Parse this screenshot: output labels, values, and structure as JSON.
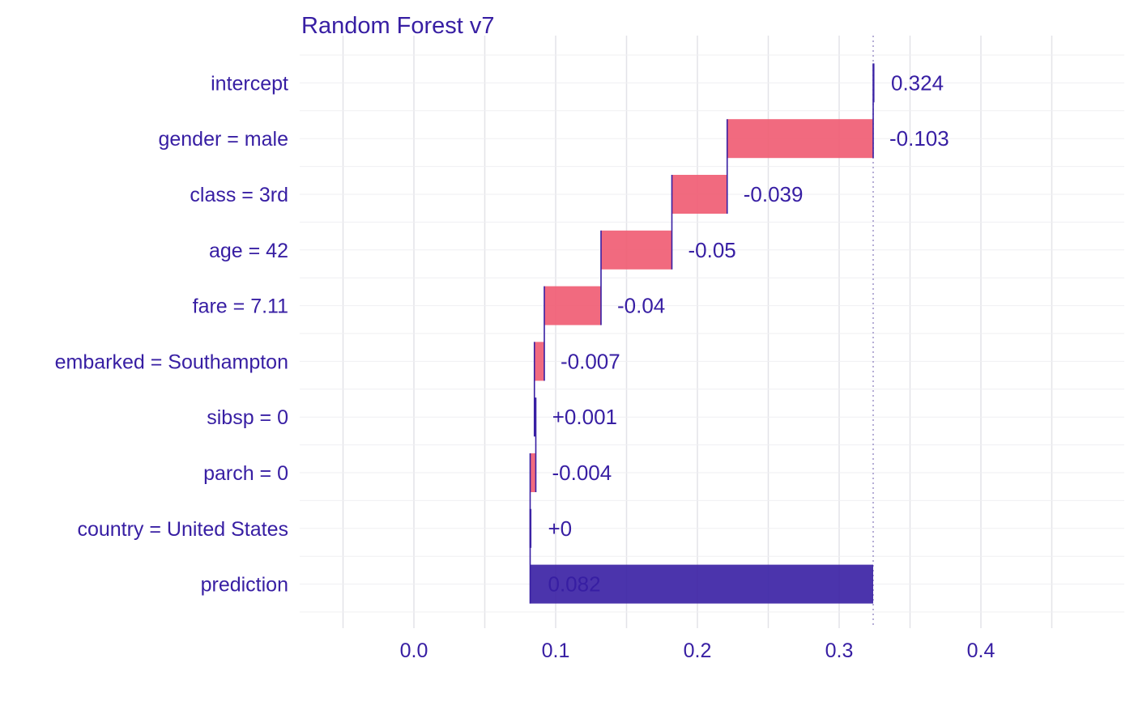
{
  "chart_data": {
    "type": "bar",
    "subtype": "waterfall",
    "title": "Random Forest v7",
    "xlim": [
      -0.08,
      0.49
    ],
    "x_ticks": [
      0.0,
      0.1,
      0.2,
      0.3,
      0.4
    ],
    "x_tick_labels": [
      "0.0",
      "0.1",
      "0.2",
      "0.3",
      "0.4"
    ],
    "grid": true,
    "reference_line": 0.324,
    "categories": [
      "intercept",
      "gender = male",
      "class = 3rd",
      "age = 42",
      "fare = 7.11",
      "embarked = Southampton",
      "sibsp = 0",
      "parch = 0",
      "country = United States",
      "prediction"
    ],
    "contributions": [
      0.324,
      -0.103,
      -0.039,
      -0.05,
      -0.04,
      -0.007,
      0.001,
      -0.004,
      0,
      0.082
    ],
    "labels": [
      "0.324",
      "-0.103",
      "-0.039",
      "-0.05",
      "-0.04",
      "-0.007",
      "+0.001",
      "-0.004",
      "+0",
      "0.082"
    ],
    "colors": {
      "text": "#371ea3",
      "negative": "#f05a71",
      "positive": "#8bdcbe",
      "prediction": "#371ea3",
      "grid": "#e3e3e8",
      "reference": "#9d93c8"
    }
  }
}
